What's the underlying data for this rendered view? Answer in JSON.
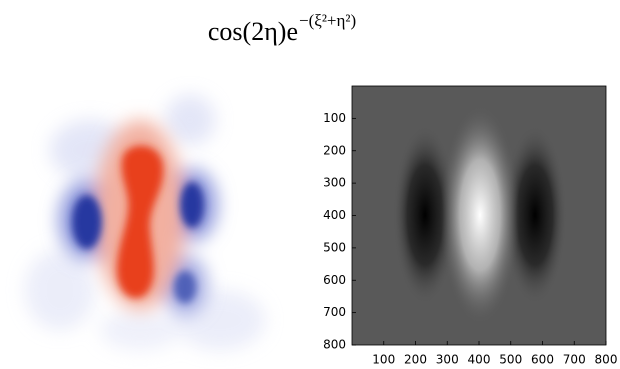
{
  "title": {
    "base": "cos(2η)e",
    "exponent": "−(ξ²+η²)"
  },
  "right_panel": {
    "xlim": [
      0,
      800
    ],
    "ylim": [
      0,
      800
    ],
    "xticks": [
      100,
      200,
      300,
      400,
      500,
      600,
      700,
      800
    ],
    "yticks": [
      100,
      200,
      300,
      400,
      500,
      600,
      700,
      800
    ]
  }
}
